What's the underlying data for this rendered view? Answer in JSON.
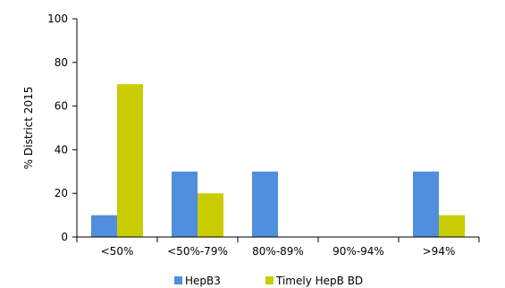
{
  "chart_data": {
    "type": "bar",
    "title": "",
    "xlabel": "",
    "ylabel": "% District 2015",
    "ylim": [
      0,
      100
    ],
    "yticks": [
      0,
      20,
      40,
      60,
      80,
      100
    ],
    "grid": false,
    "legend_position": "bottom",
    "categories": [
      "<50%",
      "<50%-79%",
      "80%-89%",
      "90%-94%",
      ">94%"
    ],
    "series": [
      {
        "name": "HepB3",
        "color": "#4f8fdc",
        "values": [
          10,
          30,
          30,
          0,
          30
        ]
      },
      {
        "name": "Timely HepB BD",
        "color": "#c8cc00",
        "values": [
          70,
          20,
          0,
          0,
          10
        ]
      }
    ]
  }
}
